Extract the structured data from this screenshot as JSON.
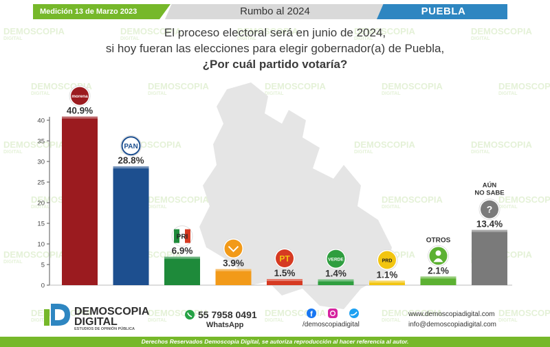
{
  "banner": {
    "date": "Medición 13 de Marzo 2023",
    "title": "Rumbo al 2024",
    "state": "PUEBLA"
  },
  "question": {
    "line1": "El proceso electoral será en junio de 2024,",
    "line2": "si hoy fueran las elecciones para elegir gobernador(a) de Puebla,",
    "line3": "¿Por cuál partido votaría?"
  },
  "watermark": {
    "line1": "DEMOSCOPIA",
    "line2": "DIGITAL"
  },
  "chart_data": {
    "type": "bar",
    "categories": [
      "morena",
      "PAN",
      "PRI",
      "Movimiento Ciudadano",
      "PT",
      "VERDE",
      "PRD",
      "OTROS",
      "AÚN NO SABE"
    ],
    "values": [
      40.9,
      28.8,
      6.9,
      3.9,
      1.5,
      1.4,
      1.1,
      2.1,
      13.4
    ],
    "value_labels": [
      "40.9%",
      "28.8%",
      "6.9%",
      "3.9%",
      "1.5%",
      "1.4%",
      "1.1%",
      "2.1%",
      "13.4%"
    ],
    "colors": [
      "#9b1b1f",
      "#1d4f8f",
      "#1e8a3a",
      "#f29a19",
      "#d63a22",
      "#2f9e3f",
      "#f2c511",
      "#5cb132",
      "#7a7a7a"
    ],
    "yticks": [
      0,
      5,
      10,
      15,
      20,
      25,
      30,
      35,
      40
    ],
    "ylim": [
      0,
      40
    ],
    "icons": [
      "morena-logo",
      "pan-logo",
      "pri-logo",
      "movimiento-ciudadano-logo",
      "pt-logo",
      "verde-logo",
      "prd-logo",
      "person-icon",
      "question-icon"
    ],
    "icon_texts": [
      "morena",
      "PAN",
      "PRI",
      "",
      "PT",
      "VERDE",
      "PRD",
      "",
      "?"
    ],
    "category_labels": {
      "otros": "OTROS",
      "no_sabe_1": "AÚN",
      "no_sabe_2": "NO SABE"
    },
    "grid": false
  },
  "footer": {
    "brand1": "DEMOSCOPIA",
    "brand2": "DIGITAL",
    "brand_sub": "ESTUDIOS DE OPINIÓN PÚBLICA",
    "phone": "55 7958 0491",
    "whatsapp": "WhatsApp",
    "social": "/demoscopiadigital",
    "website": "www.demoscopiadigital.com",
    "email": "info@demoscopiadigital.com",
    "rights": "Derechos Reservados Demoscopia Digital, se autoriza reproducción al hacer referencia al autor."
  }
}
